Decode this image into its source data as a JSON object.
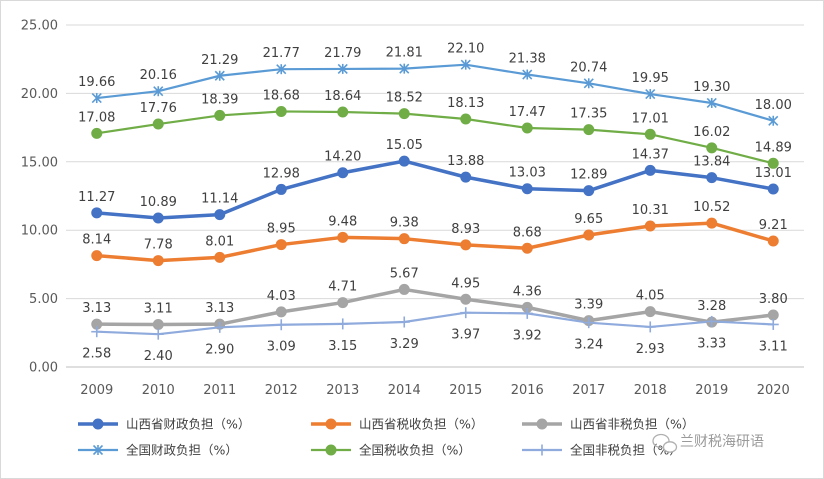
{
  "chart_data": {
    "type": "line",
    "title": "",
    "xlabel": "",
    "ylabel": "",
    "x": [
      "2009",
      "2010",
      "2011",
      "2012",
      "2013",
      "2014",
      "2015",
      "2016",
      "2017",
      "2018",
      "2019",
      "2020"
    ],
    "y_ticks": [
      "0.00",
      "5.00",
      "10.00",
      "15.00",
      "20.00",
      "25.00"
    ],
    "ylim": [
      0,
      25
    ],
    "grid": true,
    "legend_position": "bottom",
    "series": [
      {
        "name": "山西省财政负担（%）",
        "color": "#4472C4",
        "marker": "circle",
        "line_width": "thick",
        "values": [
          11.27,
          10.89,
          11.14,
          12.98,
          14.2,
          15.05,
          13.88,
          13.03,
          12.89,
          14.37,
          13.84,
          13.01
        ],
        "labels": [
          "11.27",
          "10.89",
          "11.14",
          "12.98",
          "14.20",
          "15.05",
          "13.88",
          "13.03",
          "12.89",
          "14.37",
          "13.84",
          "13.01"
        ]
      },
      {
        "name": "山西省税收负担（%）",
        "color": "#ED7D31",
        "marker": "circle",
        "line_width": "thick",
        "values": [
          8.14,
          7.78,
          8.01,
          8.95,
          9.48,
          9.38,
          8.93,
          8.68,
          9.65,
          10.31,
          10.52,
          9.21
        ],
        "labels": [
          "8.14",
          "7.78",
          "8.01",
          "8.95",
          "9.48",
          "9.38",
          "8.93",
          "8.68",
          "9.65",
          "10.31",
          "10.52",
          "9.21"
        ]
      },
      {
        "name": "山西省非税负担（%）",
        "color": "#A5A5A5",
        "marker": "circle",
        "line_width": "thick",
        "values": [
          3.13,
          3.11,
          3.13,
          4.03,
          4.71,
          5.67,
          4.95,
          4.36,
          3.39,
          4.05,
          3.28,
          3.8
        ],
        "labels": [
          "3.13",
          "3.11",
          "3.13",
          "4.03",
          "4.71",
          "5.67",
          "4.95",
          "4.36",
          "3.39",
          "4.05",
          "3.28",
          "3.80"
        ]
      },
      {
        "name": "全国财政负担（%）",
        "color": "#5B9BD5",
        "marker": "asterisk",
        "line_width": "thin",
        "values": [
          19.66,
          20.16,
          21.29,
          21.77,
          21.79,
          21.81,
          22.1,
          21.38,
          20.74,
          19.95,
          19.3,
          18.0
        ],
        "labels": [
          "19.66",
          "20.16",
          "21.29",
          "21.77",
          "21.79",
          "21.81",
          "22.10",
          "21.38",
          "20.74",
          "19.95",
          "19.30",
          "18.00"
        ]
      },
      {
        "name": "全国税收负担（%）",
        "color": "#70AD47",
        "marker": "circle",
        "line_width": "thin",
        "values": [
          17.08,
          17.76,
          18.39,
          18.68,
          18.64,
          18.52,
          18.13,
          17.47,
          17.35,
          17.01,
          16.02,
          14.89
        ],
        "labels": [
          "17.08",
          "17.76",
          "18.39",
          "18.68",
          "18.64",
          "18.52",
          "18.13",
          "17.47",
          "17.35",
          "17.01",
          "16.02",
          "14.89"
        ]
      },
      {
        "name": "全国非税负担（%）",
        "color": "#8FAADC",
        "marker": "plus",
        "line_width": "thin",
        "values": [
          2.58,
          2.4,
          2.9,
          3.09,
          3.15,
          3.29,
          3.97,
          3.92,
          3.24,
          2.93,
          3.33,
          3.11
        ],
        "labels": [
          "2.58",
          "2.40",
          "2.90",
          "3.09",
          "3.15",
          "3.29",
          "3.97",
          "3.92",
          "3.24",
          "2.93",
          "3.33",
          "3.11"
        ]
      }
    ]
  },
  "watermark": {
    "text": "兰财税海研语",
    "icon": "wechat-icon"
  }
}
